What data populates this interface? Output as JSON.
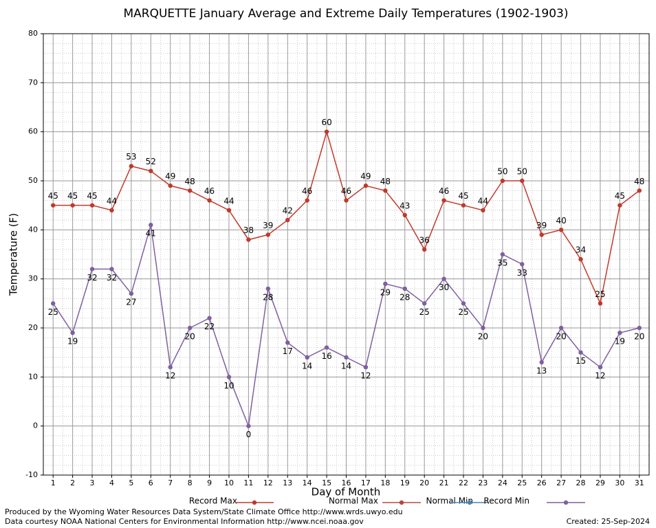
{
  "chart_data": {
    "type": "line",
    "title": "MARQUETTE January Average and Extreme Daily Temperatures (1902-1903)",
    "x_label": "Day of Month",
    "y_label": "Temperature (F)",
    "x": [
      1,
      2,
      3,
      4,
      5,
      6,
      7,
      8,
      9,
      10,
      11,
      12,
      13,
      14,
      15,
      16,
      17,
      18,
      19,
      20,
      21,
      22,
      23,
      24,
      25,
      26,
      27,
      28,
      29,
      30,
      31
    ],
    "xlim": [
      0.5,
      31.5
    ],
    "xticks": [
      1,
      2,
      3,
      4,
      5,
      6,
      7,
      8,
      9,
      10,
      11,
      12,
      13,
      14,
      15,
      16,
      17,
      18,
      19,
      20,
      21,
      22,
      23,
      24,
      25,
      26,
      27,
      28,
      29,
      30,
      31
    ],
    "ylim": [
      -10,
      80
    ],
    "yticks": [
      -10,
      0,
      10,
      20,
      30,
      40,
      50,
      60,
      70,
      80
    ],
    "grid": true,
    "series": [
      {
        "name": "Record Max",
        "color": "#c0392b",
        "label_side": "above",
        "values": [
          45,
          45,
          45,
          44,
          53,
          52,
          49,
          48,
          46,
          44,
          38,
          39,
          42,
          46,
          60,
          46,
          49,
          48,
          43,
          36,
          46,
          45,
          44,
          50,
          50,
          39,
          40,
          34,
          25,
          45,
          48
        ]
      },
      {
        "name": "Normal Max",
        "color": "#b5483f",
        "values": [
          null,
          null,
          null,
          null,
          null,
          null,
          null,
          null,
          null,
          null,
          null,
          null,
          null,
          null,
          null,
          null,
          null,
          null,
          null,
          null,
          null,
          null,
          null,
          null,
          null,
          null,
          null,
          null,
          null,
          null,
          null
        ]
      },
      {
        "name": "Normal Min",
        "color": "#4682b4",
        "values": [
          null,
          null,
          null,
          null,
          null,
          null,
          null,
          null,
          null,
          null,
          null,
          null,
          null,
          null,
          null,
          null,
          null,
          null,
          null,
          null,
          null,
          null,
          null,
          null,
          null,
          null,
          null,
          null,
          null,
          null,
          null
        ]
      },
      {
        "name": "Record Min",
        "color": "#7f5fa0",
        "label_side": "below",
        "values": [
          25,
          19,
          32,
          32,
          27,
          41,
          12,
          20,
          22,
          10,
          0,
          28,
          17,
          14,
          16,
          14,
          12,
          29,
          28,
          25,
          30,
          25,
          20,
          35,
          33,
          13,
          20,
          15,
          12,
          19,
          20
        ]
      }
    ],
    "footer_left": [
      "Produced by the Wyoming Water Resources Data System/State Climate Office http://www.wrds.uwyo.edu",
      "Data courtesy NOAA National Centers for Environmental Information http://www.ncei.noaa.gov"
    ],
    "footer_right": "Created:  25-Sep-2024"
  }
}
